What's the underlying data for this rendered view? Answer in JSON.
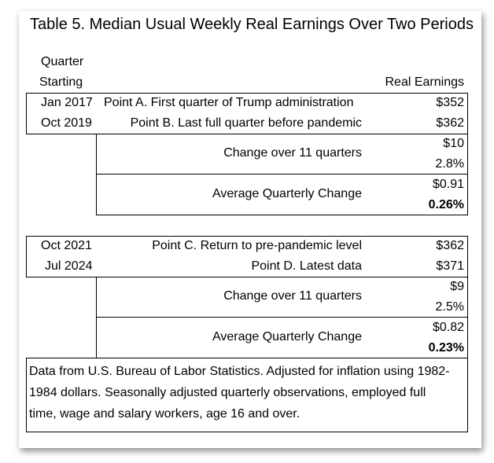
{
  "title": "Table 5. Median Usual Weekly Real Earnings Over Two Periods",
  "header": {
    "quarter_line1": "Quarter",
    "quarter_line2": "Starting",
    "real_earnings": "Real Earnings"
  },
  "period1": {
    "rows": [
      {
        "quarter": "Jan 2017",
        "label": "Point A. First quarter of Trump administration",
        "value": "$352"
      },
      {
        "quarter": "Oct 2019",
        "label": "Point B. Last full quarter before pandemic",
        "value": "$362"
      }
    ],
    "change_label": "Change over 11 quarters",
    "change_value": "$10",
    "change_pct": "2.8%",
    "avg_label": "Average Quarterly Change",
    "avg_value": "$0.91",
    "avg_pct": "0.26%"
  },
  "period2": {
    "rows": [
      {
        "quarter": "Oct 2021",
        "label": "Point C. Return to pre-pandemic level",
        "value": "$362"
      },
      {
        "quarter": "Jul 2024",
        "label": "Point D. Latest data",
        "value": "$371"
      }
    ],
    "change_label": "Change over 11 quarters",
    "change_value": "$9",
    "change_pct": "2.5%",
    "avg_label": "Average Quarterly Change",
    "avg_value": "$0.82",
    "avg_pct": "0.23%"
  },
  "footnote": {
    "line1": "Data from U.S. Bureau of Labor Statistics. Adjusted for inflation using 1982-",
    "line2": "1984 dollars. Seasonally adjusted quarterly observations, employed full",
    "line3": "time, wage and salary workers, age 16 and over."
  }
}
